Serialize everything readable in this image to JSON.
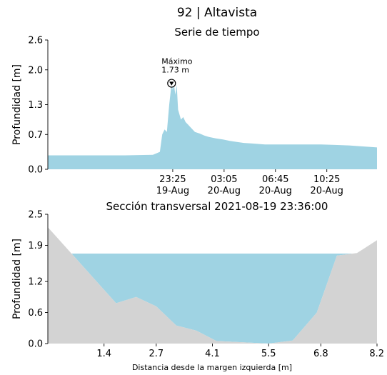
{
  "chart_data": [
    {
      "type": "area",
      "suptitle": "92 | Altavista",
      "title": "Serie de tiempo",
      "xlabel": "",
      "ylabel": "Profundidad [m]",
      "ylim": [
        0,
        2.6
      ],
      "yticks": [
        0.0,
        0.7,
        1.3,
        2.0,
        2.6
      ],
      "ytick_labels": [
        "0.0",
        "0.7",
        "1.3",
        "2.0",
        "2.6"
      ],
      "x_range": [
        "2021-08-19 14:30",
        "2021-08-20 14:00"
      ],
      "xticks": [
        "2021-08-19 23:25",
        "2021-08-20 03:05",
        "2021-08-20 06:45",
        "2021-08-20 10:25"
      ],
      "xtick_labels": [
        [
          "23:25",
          "19-Aug"
        ],
        [
          "03:05",
          "20-Aug"
        ],
        [
          "06:45",
          "20-Aug"
        ],
        [
          "10:25",
          "20-Aug"
        ]
      ],
      "fill_color": "#9fd3e3",
      "series": [
        {
          "x": [
            "2021-08-19 14:30",
            "2021-08-19 16:00",
            "2021-08-19 18:00",
            "2021-08-19 20:00",
            "2021-08-19 22:00",
            "2021-08-19 22:30",
            "2021-08-19 22:40",
            "2021-08-19 22:50",
            "2021-08-19 23:00",
            "2021-08-19 23:10",
            "2021-08-19 23:20",
            "2021-08-19 23:25",
            "2021-08-19 23:30",
            "2021-08-19 23:36",
            "2021-08-19 23:42",
            "2021-08-19 23:48",
            "2021-08-19 23:54",
            "2021-08-20 00:00",
            "2021-08-20 00:10",
            "2021-08-20 00:20",
            "2021-08-20 00:30",
            "2021-08-20 00:40",
            "2021-08-20 00:50",
            "2021-08-20 01:00",
            "2021-08-20 01:20",
            "2021-08-20 01:40",
            "2021-08-20 02:00",
            "2021-08-20 02:30",
            "2021-08-20 03:00",
            "2021-08-20 03:30",
            "2021-08-20 04:00",
            "2021-08-20 04:30",
            "2021-08-20 05:00",
            "2021-08-20 05:30",
            "2021-08-20 06:00",
            "2021-08-20 06:45",
            "2021-08-20 07:30",
            "2021-08-20 08:00",
            "2021-08-20 09:00",
            "2021-08-20 10:00",
            "2021-08-20 11:00",
            "2021-08-20 12:00",
            "2021-08-20 13:00",
            "2021-08-20 14:00"
          ],
          "values": [
            0.28,
            0.28,
            0.28,
            0.28,
            0.29,
            0.35,
            0.7,
            0.8,
            0.75,
            1.3,
            1.73,
            1.6,
            1.72,
            1.5,
            1.7,
            1.2,
            1.1,
            1.0,
            1.05,
            0.95,
            0.9,
            0.85,
            0.8,
            0.75,
            0.72,
            0.68,
            0.65,
            0.62,
            0.6,
            0.57,
            0.55,
            0.53,
            0.52,
            0.51,
            0.5,
            0.5,
            0.5,
            0.5,
            0.5,
            0.5,
            0.49,
            0.48,
            0.46,
            0.44
          ]
        }
      ],
      "annotations": [
        {
          "label": "Máximo",
          "value_label": "1.73 m",
          "x": "2021-08-19 23:20",
          "y": 1.73
        }
      ]
    },
    {
      "type": "area",
      "title": "Sección transversal 2021-08-19 23:36:00",
      "xlabel": "Distancia desde la margen izquierda [m]",
      "ylabel": "Profundidad [m]",
      "xlim": [
        0.0,
        8.2
      ],
      "ylim": [
        0.0,
        2.5
      ],
      "xticks": [
        1.4,
        2.7,
        4.1,
        5.5,
        6.8,
        8.2
      ],
      "xtick_labels": [
        "1.4",
        "2.7",
        "4.1",
        "5.5",
        "6.8",
        "8.2"
      ],
      "yticks": [
        0.0,
        0.6,
        1.2,
        1.9,
        2.5
      ],
      "ytick_labels": [
        "0.0",
        "0.6",
        "1.2",
        "1.9",
        "2.5"
      ],
      "water_level": 1.74,
      "water_color": "#9fd3e3",
      "ground_color": "#d3d3d3",
      "profile": {
        "x": [
          0.0,
          1.7,
          2.2,
          2.7,
          3.2,
          3.7,
          4.2,
          5.5,
          6.1,
          6.7,
          7.2,
          7.7,
          8.2
        ],
        "y": [
          2.25,
          0.78,
          0.9,
          0.72,
          0.35,
          0.25,
          0.05,
          0.0,
          0.06,
          0.6,
          1.7,
          1.75,
          2.0
        ]
      }
    }
  ]
}
